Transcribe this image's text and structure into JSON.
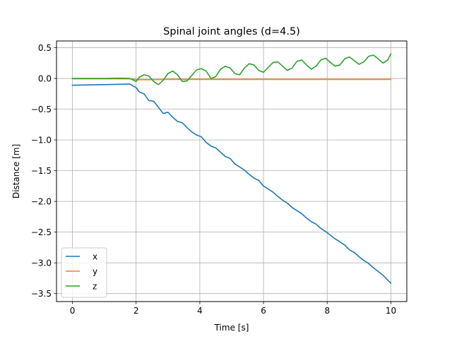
{
  "chart_data": {
    "type": "line",
    "title": "Spinal joint angles (d=4.5)",
    "xlabel": "Time [s]",
    "ylabel": "Distance [m]",
    "xlim": [
      -0.5,
      10.5
    ],
    "ylim": [
      -3.63,
      0.61
    ],
    "xticks": [
      0,
      2,
      4,
      6,
      8,
      10
    ],
    "xtick_labels": [
      "0",
      "2",
      "4",
      "6",
      "8",
      "10"
    ],
    "yticks": [
      0.5,
      0.0,
      -0.5,
      -1.0,
      -1.5,
      -2.0,
      -2.5,
      -3.0,
      -3.5
    ],
    "ytick_labels": [
      "0.5",
      "0.0",
      "−0.5",
      "−1.0",
      "−1.5",
      "−2.0",
      "−2.5",
      "−3.0",
      "−3.5"
    ],
    "grid": true,
    "legend_position": "lower-left",
    "series": [
      {
        "name": "x",
        "color": "#1f77b4",
        "x": [
          0,
          0.5,
          1.0,
          1.5,
          1.8,
          2.0,
          2.1,
          2.25,
          2.4,
          2.55,
          2.7,
          2.85,
          3.0,
          3.15,
          3.3,
          3.45,
          3.6,
          3.75,
          3.9,
          4.05,
          4.2,
          4.35,
          4.5,
          4.65,
          4.8,
          4.95,
          5.1,
          5.25,
          5.4,
          5.55,
          5.7,
          5.85,
          6.0,
          6.15,
          6.3,
          6.45,
          6.6,
          6.75,
          6.9,
          7.05,
          7.2,
          7.35,
          7.5,
          7.65,
          7.8,
          7.95,
          8.1,
          8.25,
          8.4,
          8.55,
          8.7,
          8.85,
          9.0,
          9.15,
          9.3,
          9.45,
          9.6,
          9.75,
          9.9,
          10.0
        ],
        "y": [
          -0.11,
          -0.105,
          -0.1,
          -0.095,
          -0.09,
          -0.15,
          -0.22,
          -0.25,
          -0.36,
          -0.37,
          -0.47,
          -0.57,
          -0.55,
          -0.63,
          -0.7,
          -0.72,
          -0.8,
          -0.87,
          -0.92,
          -0.95,
          -1.04,
          -1.1,
          -1.13,
          -1.2,
          -1.27,
          -1.3,
          -1.39,
          -1.44,
          -1.49,
          -1.56,
          -1.62,
          -1.66,
          -1.75,
          -1.8,
          -1.85,
          -1.92,
          -1.98,
          -2.03,
          -2.1,
          -2.15,
          -2.2,
          -2.27,
          -2.33,
          -2.37,
          -2.44,
          -2.49,
          -2.55,
          -2.61,
          -2.66,
          -2.71,
          -2.79,
          -2.83,
          -2.9,
          -2.96,
          -3.01,
          -3.08,
          -3.14,
          -3.2,
          -3.28,
          -3.33
        ]
      },
      {
        "name": "y",
        "color": "#ff7f0e",
        "x": [
          0,
          1.0,
          1.8,
          2.0,
          2.5,
          3.0,
          4.0,
          5.0,
          6.0,
          7.0,
          8.0,
          9.0,
          10.0
        ],
        "y": [
          -0.005,
          -0.005,
          -0.005,
          -0.02,
          -0.02,
          -0.015,
          -0.015,
          -0.015,
          -0.015,
          -0.015,
          -0.015,
          -0.015,
          -0.015
        ]
      },
      {
        "name": "z",
        "color": "#2ca02c",
        "x": [
          0,
          0.5,
          1.0,
          1.5,
          1.8,
          2.0,
          2.1,
          2.25,
          2.4,
          2.55,
          2.7,
          2.85,
          3.0,
          3.15,
          3.3,
          3.45,
          3.6,
          3.75,
          3.9,
          4.05,
          4.2,
          4.35,
          4.5,
          4.65,
          4.8,
          4.95,
          5.1,
          5.25,
          5.4,
          5.55,
          5.7,
          5.85,
          6.0,
          6.15,
          6.3,
          6.45,
          6.6,
          6.75,
          6.9,
          7.05,
          7.2,
          7.35,
          7.5,
          7.65,
          7.8,
          7.95,
          8.1,
          8.25,
          8.4,
          8.55,
          8.7,
          8.85,
          9.0,
          9.15,
          9.3,
          9.45,
          9.6,
          9.75,
          9.9,
          10.0
        ],
        "y": [
          0.0,
          0.0,
          0.0,
          0.005,
          0.0,
          -0.05,
          0.02,
          0.06,
          0.04,
          -0.05,
          -0.1,
          -0.03,
          0.08,
          0.12,
          0.06,
          -0.05,
          -0.04,
          0.05,
          0.14,
          0.16,
          0.12,
          0.0,
          0.03,
          0.15,
          0.2,
          0.17,
          0.08,
          0.06,
          0.17,
          0.24,
          0.22,
          0.13,
          0.1,
          0.18,
          0.26,
          0.27,
          0.2,
          0.13,
          0.17,
          0.28,
          0.3,
          0.22,
          0.15,
          0.2,
          0.3,
          0.33,
          0.26,
          0.2,
          0.22,
          0.32,
          0.35,
          0.29,
          0.23,
          0.27,
          0.36,
          0.38,
          0.32,
          0.25,
          0.3,
          0.4
        ]
      }
    ]
  }
}
